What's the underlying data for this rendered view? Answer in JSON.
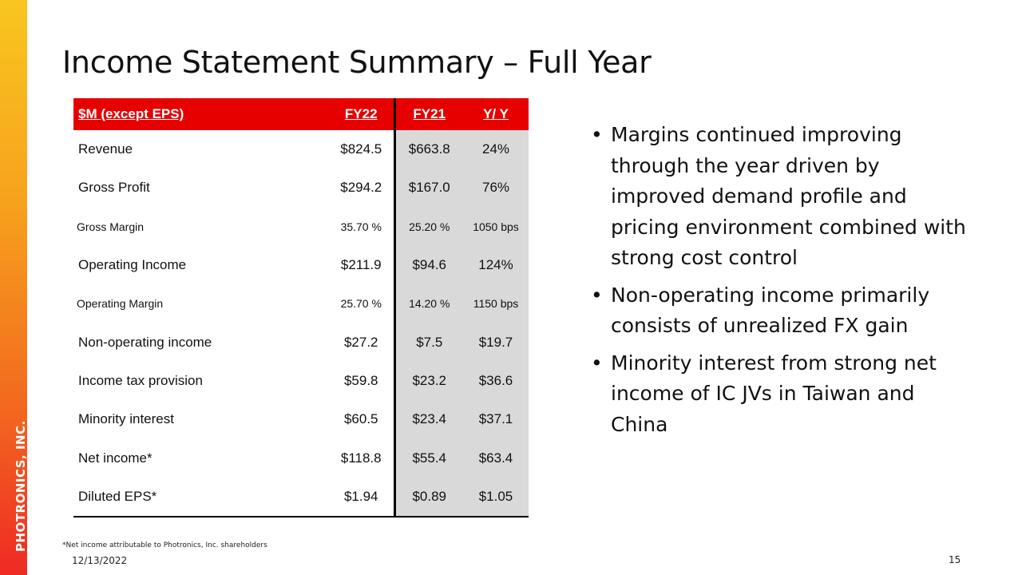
{
  "brand": "PHOTRONICS, INC.",
  "title": "Income Statement Summary – Full Year",
  "table": {
    "headers": [
      "$M (except EPS)",
      "FY22",
      "FY21",
      "Y/ Y"
    ],
    "rows": [
      {
        "label": "Revenue",
        "fy22": "$824.5",
        "fy21": "$663.8",
        "yy": "24%"
      },
      {
        "label": "Gross Profit",
        "fy22": "$294.2",
        "fy21": "$167.0",
        "yy": "76%"
      },
      {
        "label": "Gross Margin",
        "fy22": "35.70 %",
        "fy21": "25.20 %",
        "yy": "1050 bps"
      },
      {
        "label": "Operating Income",
        "fy22": "$211.9",
        "fy21": "$94.6",
        "yy": "124%"
      },
      {
        "label": "Operating Margin",
        "fy22": "25.70 %",
        "fy21": "14.20 %",
        "yy": "1150 bps"
      },
      {
        "label": "Non-operating income",
        "fy22": "$27.2",
        "fy21": "$7.5",
        "yy": "$19.7"
      },
      {
        "label": "Income tax provision",
        "fy22": "$59.8",
        "fy21": "$23.2",
        "yy": "$36.6"
      },
      {
        "label": "Minority interest",
        "fy22": "$60.5",
        "fy21": "$23.4",
        "yy": "$37.1"
      },
      {
        "label": "Net income*",
        "fy22": "$118.8",
        "fy21": "$55.4",
        "yy": "$63.4"
      },
      {
        "label": "Diluted EPS*",
        "fy22": "$1.94",
        "fy21": "$0.89",
        "yy": "$1.05"
      }
    ]
  },
  "bullets": [
    "Margins continued improving through the year driven by improved demand profile and pricing environment combined with strong cost control",
    "Non-operating income primarily consists of unrealized FX gain",
    "Minority interest from strong net income of IC JVs in Taiwan and China"
  ],
  "footnote": "*Net income attributable to Photronics, Inc. shareholders",
  "date": "12/13/2022",
  "page_number": "15",
  "colors": {
    "header_red": "#e60000",
    "shade_gray": "#d9d9d9"
  }
}
